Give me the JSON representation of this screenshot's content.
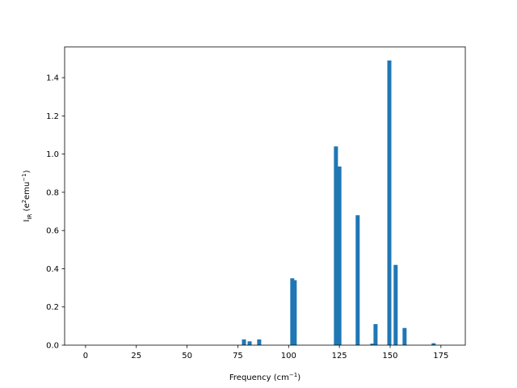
{
  "chart_data": {
    "type": "bar",
    "xlabel": [
      {
        "text": "Frequency (cm"
      },
      {
        "text": "−1",
        "shift": "super"
      },
      {
        "text": ")"
      }
    ],
    "ylabel": [
      {
        "text": "I"
      },
      {
        "text": "IR",
        "shift": "sub"
      },
      {
        "text": " (e"
      },
      {
        "text": "2",
        "shift": "super"
      },
      {
        "text": "emu"
      },
      {
        "text": "−1",
        "shift": "super"
      },
      {
        "text": ")"
      }
    ],
    "x": [
      78,
      80.8,
      85.5,
      101.8,
      103,
      123.3,
      125,
      134,
      141.2,
      142.8,
      149.6,
      152.7,
      157.1,
      171.4
    ],
    "values": [
      0.03,
      0.02,
      0.03,
      0.35,
      0.34,
      1.04,
      0.935,
      0.68,
      0.008,
      0.11,
      1.49,
      0.42,
      0.09,
      0.01
    ],
    "color": "#1f77b4",
    "xlim": [
      -10.3,
      187.0
    ],
    "xticks": [
      0,
      25,
      50,
      75,
      100,
      125,
      150,
      175
    ],
    "ylim": [
      0,
      1.561
    ],
    "yticks": [
      {
        "value": 0,
        "label": "0.0"
      },
      0.2,
      0.4,
      0.6,
      0.8,
      {
        "value": 1,
        "label": "1.0"
      },
      1.2,
      1.4
    ],
    "grid": false
  }
}
